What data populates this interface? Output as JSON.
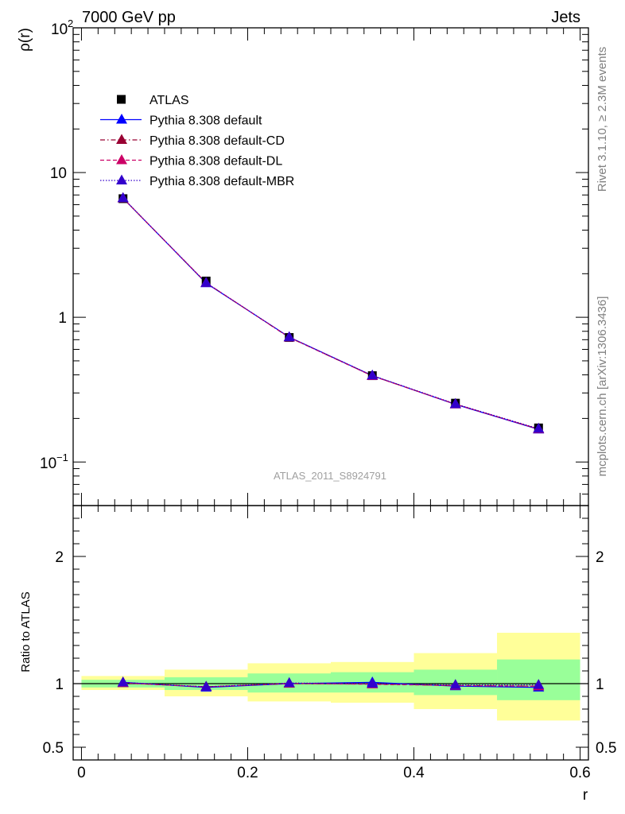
{
  "header": {
    "left_title": "7000 GeV pp",
    "right_title": "Jets"
  },
  "side_labels": {
    "rivet": "Rivet 3.1.10, ≥ 2.3M events",
    "mcplots": "mcplots.cern.ch [arXiv:1306.3436]"
  },
  "watermark": "ATLAS_2011_S8924791",
  "chart_data": [
    {
      "type": "line",
      "ylabel": "ρ(r)",
      "xlabel": "",
      "yscale": "log",
      "ylim": [
        0.05,
        100
      ],
      "xlim": [
        -0.01,
        0.61
      ],
      "x": [
        0.05,
        0.15,
        0.25,
        0.35,
        0.45,
        0.55
      ],
      "ytick_labels": [
        "10",
        "1"
      ],
      "ytick_sup_labels": [
        {
          "base": "10",
          "exp": "2"
        },
        {
          "base": "10",
          "exp": "−1"
        }
      ],
      "legend_placement": "top-left",
      "series": [
        {
          "name": "ATLAS",
          "marker": "square",
          "color": "#000000",
          "values": [
            6.6,
            1.78,
            0.725,
            0.395,
            0.255,
            0.172
          ]
        },
        {
          "name": "Pythia 8.308 default",
          "marker": "triangle",
          "line": "solid",
          "color": "#0000ff",
          "values": [
            6.65,
            1.72,
            0.73,
            0.395,
            0.25,
            0.168
          ]
        },
        {
          "name": "Pythia 8.308 default-CD",
          "marker": "triangle",
          "line": "dashdot",
          "color": "#990033",
          "values": [
            6.64,
            1.73,
            0.725,
            0.394,
            0.251,
            0.169
          ]
        },
        {
          "name": "Pythia 8.308 default-DL",
          "marker": "triangle",
          "line": "dashed",
          "color": "#cc0066",
          "values": [
            6.64,
            1.73,
            0.727,
            0.393,
            0.251,
            0.169
          ]
        },
        {
          "name": "Pythia 8.308 default-MBR",
          "marker": "triangle",
          "line": "dotted",
          "color": "#3300cc",
          "values": [
            6.66,
            1.73,
            0.728,
            0.396,
            0.252,
            0.17
          ]
        }
      ]
    },
    {
      "type": "line",
      "ylabel": "Ratio to ATLAS",
      "xlabel": "r",
      "ylim": [
        0.4,
        2.4
      ],
      "xlim": [
        -0.01,
        0.61
      ],
      "x_ticks": [
        "0",
        "0.2",
        "0.4",
        "0.6"
      ],
      "y_ticks": [
        "0.5",
        "1",
        "2"
      ],
      "bins": [
        [
          0.0,
          0.1
        ],
        [
          0.1,
          0.2
        ],
        [
          0.2,
          0.3
        ],
        [
          0.3,
          0.4
        ],
        [
          0.4,
          0.5
        ],
        [
          0.5,
          0.6
        ]
      ],
      "band_stat": [
        [
          0.97,
          1.03
        ],
        [
          0.95,
          1.05
        ],
        [
          0.93,
          1.08
        ],
        [
          0.93,
          1.09
        ],
        [
          0.91,
          1.11
        ],
        [
          0.87,
          1.19
        ]
      ],
      "band_total": [
        [
          0.95,
          1.06
        ],
        [
          0.9,
          1.11
        ],
        [
          0.86,
          1.16
        ],
        [
          0.85,
          1.17
        ],
        [
          0.8,
          1.24
        ],
        [
          0.71,
          1.4
        ]
      ],
      "x": [
        0.05,
        0.15,
        0.25,
        0.35,
        0.45,
        0.55
      ],
      "series": [
        {
          "name": "Pythia 8.308 default",
          "color": "#0000ff",
          "values": [
            1.01,
            0.97,
            1.0,
            1.01,
            0.98,
            0.97
          ]
        },
        {
          "name": "Pythia 8.308 default-CD",
          "color": "#990033",
          "values": [
            1.005,
            0.975,
            1.0,
            0.998,
            0.985,
            0.98
          ]
        },
        {
          "name": "Pythia 8.308 default-DL",
          "color": "#cc0066",
          "values": [
            1.005,
            0.975,
            1.002,
            0.995,
            0.985,
            0.98
          ]
        },
        {
          "name": "Pythia 8.308 default-MBR",
          "color": "#3300cc",
          "values": [
            1.01,
            0.975,
            1.005,
            1.0,
            0.99,
            0.99
          ]
        }
      ]
    }
  ]
}
